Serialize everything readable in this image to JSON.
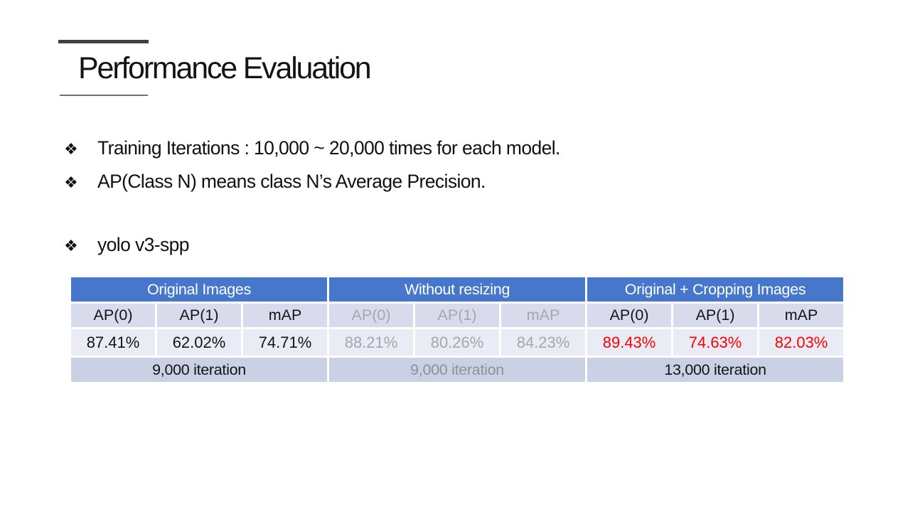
{
  "slide": {
    "title": "Performance Evaluation",
    "bullet_marker": "❖",
    "bullets": [
      {
        "text": "Training Iterations : 10,000 ~ 20,000 times for each model."
      },
      {
        "text": "AP(Class N) means class N’s Average Precision."
      },
      {
        "text": "yolo v3-spp"
      }
    ]
  },
  "table": {
    "groups": [
      {
        "header": "Original Images",
        "columns": [
          "AP(0)",
          "AP(1)",
          "mAP"
        ],
        "values": [
          "87.41%",
          "62.02%",
          "74.71%"
        ],
        "iteration": "9,000 iteration"
      },
      {
        "header": "Without resizing",
        "columns": [
          "AP(0)",
          "AP(1)",
          "mAP"
        ],
        "values": [
          "88.21%",
          "80.26%",
          "84.23%"
        ],
        "iteration": "9,000 iteration"
      },
      {
        "header": "Original + Cropping Images",
        "columns": [
          "AP(0)",
          "AP(1)",
          "mAP"
        ],
        "values": [
          "89.43%",
          "74.63%",
          "82.03%"
        ],
        "iteration": "13,000 iteration"
      }
    ]
  },
  "colors": {
    "group_header_bg": "#4677CB",
    "subhead_bg": "#D7DBEC",
    "values_bg": "#E9EBF5",
    "footer_bg": "#CBD1E5",
    "muted_text": "#A5A7AC",
    "footer_muted_text": "#8F9196",
    "highlight_text": "#FF0000",
    "title_rule": "#404040"
  }
}
